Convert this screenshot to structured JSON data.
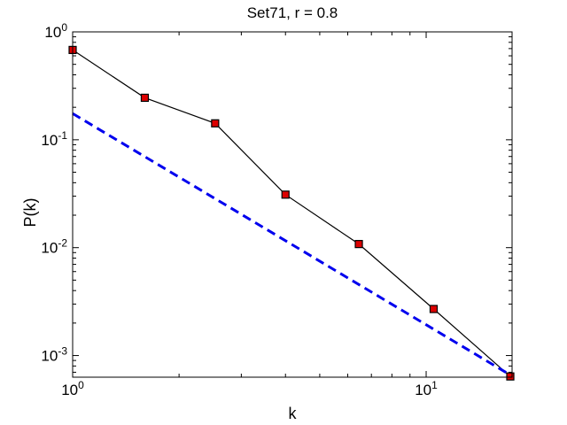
{
  "chart_data": {
    "type": "line",
    "title": "Set71, r = 0.8",
    "xlabel": "k",
    "ylabel": "P(k)",
    "xscale": "log",
    "yscale": "log",
    "xlim": [
      1,
      17.5
    ],
    "ylim": [
      0.00063,
      1.0
    ],
    "grid": false,
    "legend": "none",
    "x_ticks": [
      {
        "value": 1,
        "base": "10",
        "exp": "0"
      },
      {
        "value": 10,
        "base": "10",
        "exp": "1"
      }
    ],
    "y_ticks": [
      {
        "value": 1,
        "base": "10",
        "exp": "0"
      },
      {
        "value": 0.1,
        "base": "10",
        "exp": "-1"
      },
      {
        "value": 0.01,
        "base": "10",
        "exp": "-2"
      },
      {
        "value": 0.001,
        "base": "10",
        "exp": "-3"
      }
    ],
    "series": [
      {
        "style": "black solid line with red square markers",
        "color": "#000000",
        "marker_color": "#dd0000",
        "x": [
          1.0,
          1.6,
          2.53,
          4.0,
          6.45,
          10.5,
          17.3
        ],
        "y": [
          0.68,
          0.245,
          0.142,
          0.031,
          0.0108,
          0.0027,
          0.00064
        ]
      },
      {
        "style": "blue dashed line",
        "color": "#0000ee",
        "dashed": true,
        "x": [
          1.0,
          17.3
        ],
        "y": [
          0.175,
          0.00066
        ]
      }
    ]
  }
}
